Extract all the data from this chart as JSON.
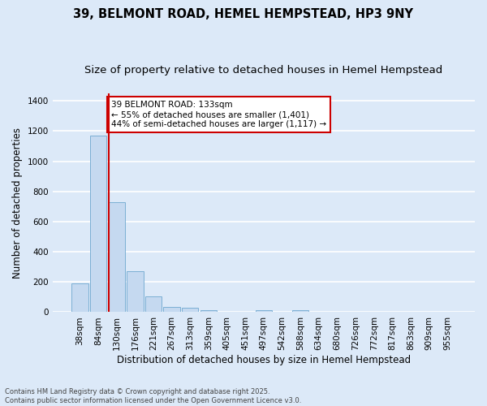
{
  "title1": "39, BELMONT ROAD, HEMEL HEMPSTEAD, HP3 9NY",
  "title2": "Size of property relative to detached houses in Hemel Hempstead",
  "xlabel": "Distribution of detached houses by size in Hemel Hempstead",
  "ylabel": "Number of detached properties",
  "bins": [
    "38sqm",
    "84sqm",
    "130sqm",
    "176sqm",
    "221sqm",
    "267sqm",
    "313sqm",
    "359sqm",
    "405sqm",
    "451sqm",
    "497sqm",
    "542sqm",
    "588sqm",
    "634sqm",
    "680sqm",
    "726sqm",
    "772sqm",
    "817sqm",
    "863sqm",
    "909sqm",
    "955sqm"
  ],
  "values": [
    193,
    1170,
    730,
    270,
    107,
    35,
    28,
    13,
    0,
    0,
    13,
    0,
    13,
    0,
    0,
    0,
    0,
    0,
    0,
    0,
    0
  ],
  "bar_color": "#c5d9f0",
  "bar_edge_color": "#7bafd4",
  "vline_color": "#cc0000",
  "annotation_text": "39 BELMONT ROAD: 133sqm\n← 55% of detached houses are smaller (1,401)\n44% of semi-detached houses are larger (1,117) →",
  "bg_color": "#dce9f8",
  "grid_color": "#ffffff",
  "footnote": "Contains HM Land Registry data © Crown copyright and database right 2025.\nContains public sector information licensed under the Open Government Licence v3.0.",
  "ylim": [
    0,
    1450
  ],
  "yticks": [
    0,
    200,
    400,
    600,
    800,
    1000,
    1200,
    1400
  ],
  "title1_fontsize": 10.5,
  "title2_fontsize": 9.5,
  "xlabel_fontsize": 8.5,
  "ylabel_fontsize": 8.5,
  "tick_fontsize": 7.5,
  "annot_fontsize": 7.5,
  "footnote_fontsize": 6.0,
  "vline_bin_index": 2
}
